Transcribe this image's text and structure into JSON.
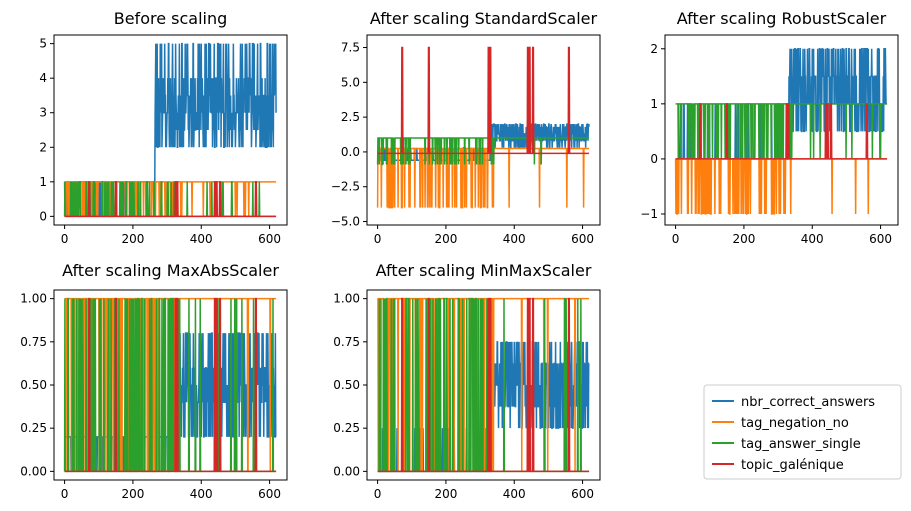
{
  "series_styles": [
    {
      "name": "nbr_correct_answers",
      "color": "#1f77b4"
    },
    {
      "name": "tag_negation_no",
      "color": "#ff7f0e"
    },
    {
      "name": "tag_answer_single",
      "color": "#2ca02c"
    },
    {
      "name": "topic_galénique",
      "color": "#d62728"
    }
  ],
  "legend": {
    "placement": "lower-right",
    "entries": [
      "nbr_correct_answers",
      "tag_negation_no",
      "tag_answer_single",
      "topic_galénique"
    ]
  },
  "chart_data": [
    {
      "type": "line",
      "title": "Before scaling",
      "xlim": [
        -31,
        651
      ],
      "ylim": [
        -0.25,
        5.25
      ],
      "xticks": [
        0,
        200,
        400,
        600
      ],
      "yticks": [
        0,
        1,
        2,
        3,
        4,
        5
      ],
      "ytick_labels": [
        "0",
        "1",
        "2",
        "3",
        "4",
        "5"
      ],
      "series": [
        {
          "values": {
            "base": 1,
            "low": 0,
            "high": 1,
            "flip_band": [
              0,
              340
            ],
            "noise_after": 265,
            "noise_values": [
              2,
              2.5,
              3,
              3.5,
              4,
              5
            ]
          }
        },
        {
          "values": {
            "base": 1,
            "low": 0,
            "high": 1
          }
        },
        {
          "values": {
            "base": 0,
            "low": 0,
            "high": 1,
            "flip_band": [
              0,
              330
            ]
          }
        },
        {
          "values": {
            "base": 0,
            "low": 0,
            "high": 1,
            "spikes": [
              72,
              150,
              325,
              330,
              440,
              445,
              455,
              560
            ]
          }
        }
      ]
    },
    {
      "type": "line",
      "title": "After scaling StandardScaler",
      "xlim": [
        -31,
        651
      ],
      "ylim": [
        -5.25,
        8.4
      ],
      "xticks": [
        0,
        200,
        400,
        600
      ],
      "yticks": [
        -5.0,
        -2.5,
        0.0,
        2.5,
        5.0,
        7.5
      ],
      "ytick_labels": [
        "−5.0",
        "−2.5",
        "0.0",
        "2.5",
        "5.0",
        "7.5"
      ],
      "series": [
        {
          "values": {
            "base": -0.6,
            "low": -0.6,
            "high": 0.3,
            "noise_after": 330,
            "noise_values": [
              0.3,
              0.8,
              1.3,
              1.8,
              2.0
            ]
          }
        },
        {
          "values": {
            "base": 0.25,
            "low": -4.0,
            "high": 0.25
          }
        },
        {
          "values": {
            "base": 1.0,
            "low": -0.9,
            "high": 1.0
          }
        },
        {
          "values": {
            "base": -0.1,
            "low": -0.1,
            "high": 7.5,
            "spikes": [
              72,
              150,
              325,
              330,
              440,
              445,
              455,
              560
            ]
          }
        }
      ]
    },
    {
      "type": "line",
      "title": "After scaling RobustScaler",
      "xlim": [
        -31,
        651
      ],
      "ylim": [
        -1.2,
        2.25
      ],
      "xticks": [
        0,
        200,
        400,
        600
      ],
      "yticks": [
        -1,
        0,
        1,
        2
      ],
      "ytick_labels": [
        "−1",
        "0",
        "1",
        "2"
      ],
      "series": [
        {
          "values": {
            "base": 0,
            "low": 0,
            "high": 1,
            "noise_after": 330,
            "noise_values": [
              0.5,
              1.0,
              1.5,
              2.0
            ]
          }
        },
        {
          "values": {
            "base": 0,
            "low": -1,
            "high": 0
          }
        },
        {
          "values": {
            "base": 1,
            "low": 0,
            "high": 1
          }
        },
        {
          "values": {
            "base": 0,
            "low": 0,
            "high": 1,
            "spikes": [
              72,
              150,
              325,
              330,
              440,
              445,
              455,
              560
            ]
          }
        }
      ]
    },
    {
      "type": "line",
      "title": "After scaling MaxAbsScaler",
      "xlim": [
        -31,
        651
      ],
      "ylim": [
        -0.05,
        1.05
      ],
      "xticks": [
        0,
        200,
        400,
        600
      ],
      "yticks": [
        0.0,
        0.25,
        0.5,
        0.75,
        1.0
      ],
      "ytick_labels": [
        "0.00",
        "0.25",
        "0.50",
        "0.75",
        "1.00"
      ],
      "series": [
        {
          "values": {
            "base": 0.2,
            "low": 0.0,
            "high": 0.2,
            "noise_after": 330,
            "noise_values": [
              0.2,
              0.4,
              0.5,
              0.6,
              0.8
            ]
          }
        },
        {
          "values": {
            "base": 1.0,
            "low": 0.0,
            "high": 1.0
          }
        },
        {
          "values": {
            "base": 0.0,
            "low": 0.0,
            "high": 1.0
          }
        },
        {
          "values": {
            "base": 0.0,
            "low": 0.0,
            "high": 1.0,
            "spikes": [
              72,
              150,
              325,
              330,
              440,
              445,
              455,
              560
            ]
          }
        }
      ]
    },
    {
      "type": "line",
      "title": "After scaling MinMaxScaler",
      "xlim": [
        -31,
        651
      ],
      "ylim": [
        -0.05,
        1.05
      ],
      "xticks": [
        0,
        200,
        400,
        600
      ],
      "yticks": [
        0.0,
        0.25,
        0.5,
        0.75,
        1.0
      ],
      "ytick_labels": [
        "0.00",
        "0.25",
        "0.50",
        "0.75",
        "1.00"
      ],
      "series": [
        {
          "values": {
            "base": 0.0,
            "low": 0.0,
            "high": 0.25,
            "noise_after": 330,
            "noise_values": [
              0.25,
              0.375,
              0.5,
              0.625,
              0.75
            ]
          }
        },
        {
          "values": {
            "base": 1.0,
            "low": 0.0,
            "high": 1.0
          }
        },
        {
          "values": {
            "base": 0.0,
            "low": 0.0,
            "high": 1.0
          }
        },
        {
          "values": {
            "base": 0.0,
            "low": 0.0,
            "high": 1.0,
            "spikes": [
              72,
              150,
              325,
              330,
              440,
              445,
              455,
              560
            ]
          }
        }
      ]
    }
  ]
}
